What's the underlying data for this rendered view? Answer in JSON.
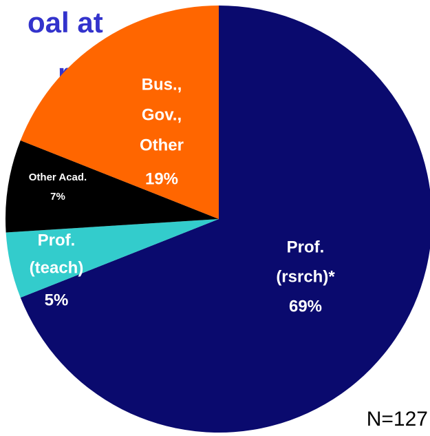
{
  "chart_data": {
    "type": "pie",
    "title_lines": [
      "oal at",
      "rt"
    ],
    "categories": [
      [
        "Prof.",
        "(rsrch)*"
      ],
      [
        "Prof.",
        "(teach)"
      ],
      [
        "Other Acad."
      ],
      [
        "Bus.,",
        "Gov.,",
        "Other"
      ]
    ],
    "values": [
      69,
      5,
      7,
      19
    ],
    "value_labels": [
      "69%",
      "5%",
      "7%",
      "19%"
    ],
    "colors": [
      "#0a0a6e",
      "#33cccc",
      "#000000",
      "#ff6600"
    ],
    "annotation": "N=127"
  }
}
